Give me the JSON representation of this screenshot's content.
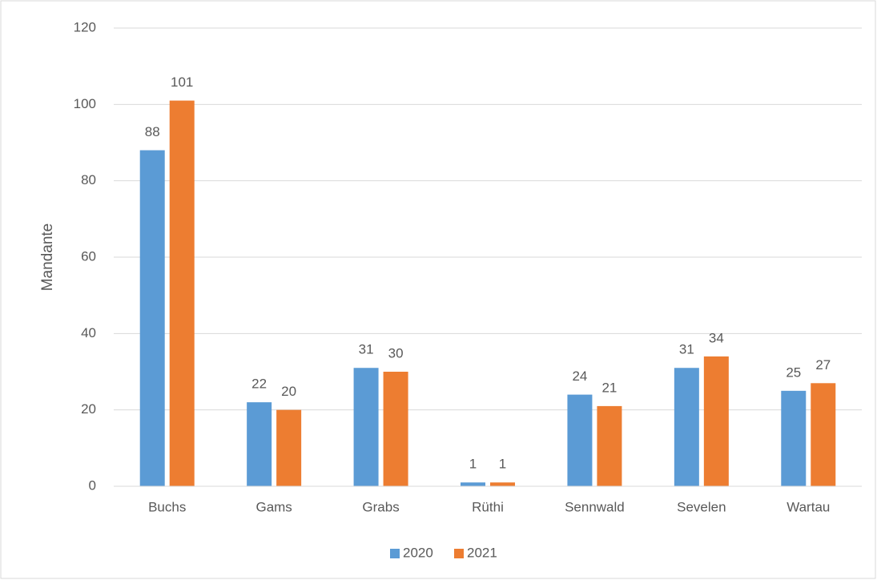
{
  "chart_data": {
    "type": "bar",
    "y_label": "Mandante",
    "categories": [
      "Buchs",
      "Gams",
      "Grabs",
      "Rüthi",
      "Sennwald",
      "Sevelen",
      "Wartau"
    ],
    "series": [
      {
        "name": "2020",
        "color": "#5b9bd5",
        "values": [
          88,
          22,
          31,
          1,
          24,
          31,
          25
        ]
      },
      {
        "name": "2021",
        "color": "#ed7d31",
        "values": [
          101,
          20,
          30,
          1,
          21,
          34,
          27
        ]
      }
    ],
    "ylim": [
      0,
      120
    ],
    "yticks": [
      0,
      20,
      40,
      60,
      80,
      100,
      120
    ],
    "grid": true,
    "legend": "bottom"
  }
}
